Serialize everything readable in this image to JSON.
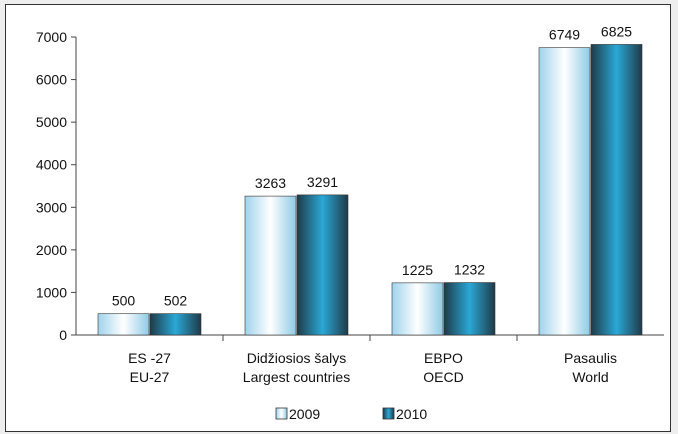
{
  "chart_data": {
    "type": "bar",
    "categories": [
      [
        "ES -27",
        "EU-27"
      ],
      [
        "Didžiosios šalys",
        "Largest countries"
      ],
      [
        "EBPO",
        "OECD"
      ],
      [
        "Pasaulis",
        "World"
      ]
    ],
    "series": [
      {
        "name": "2009",
        "values": [
          500,
          3263,
          1225,
          6749
        ]
      },
      {
        "name": "2010",
        "values": [
          502,
          3291,
          1232,
          6825
        ]
      }
    ],
    "data_labels": [
      [
        "500",
        "3263",
        "1225",
        "6749"
      ],
      [
        "502",
        "3291",
        "1232",
        "6825"
      ]
    ],
    "yticks": [
      "0",
      "1000",
      "2000",
      "3000",
      "4000",
      "5000",
      "6000",
      "7000"
    ],
    "ylim": [
      0,
      7000
    ],
    "grid": false,
    "legend_position": "bottom",
    "colors": {
      "series_2009": [
        "#9fd3ec",
        "#ffffff",
        "#8fcbe6"
      ],
      "series_2010": [
        "#1f3a48",
        "#2aa8d6",
        "#1f3a48"
      ]
    }
  }
}
